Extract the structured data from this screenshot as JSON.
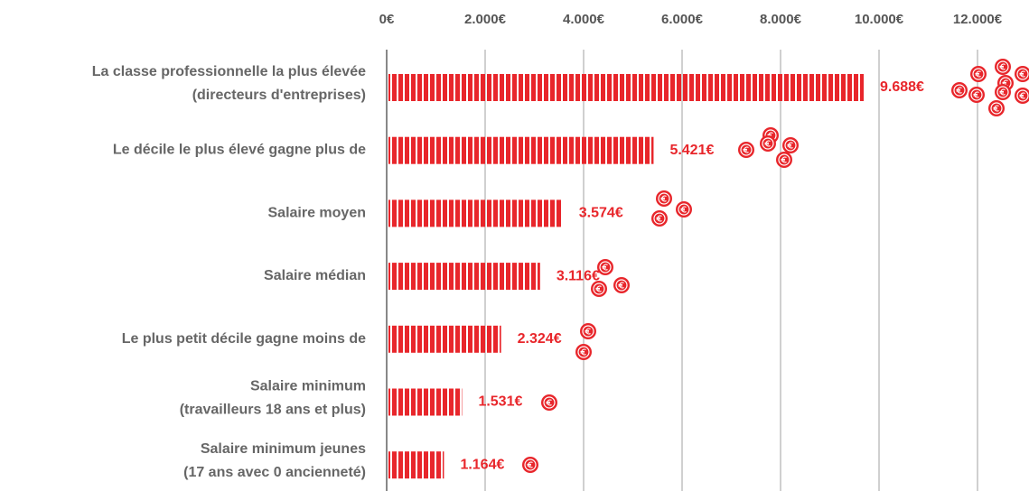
{
  "chart_data": {
    "type": "bar",
    "orientation": "horizontal",
    "categories": [
      [
        "La classe professionnelle la plus élevée",
        "(directeurs d'entreprises)"
      ],
      [
        "Le décile le plus élevé gagne plus de"
      ],
      [
        "Salaire moyen"
      ],
      [
        "Salaire médian"
      ],
      [
        "Le plus petit décile gagne moins de"
      ],
      [
        "Salaire minimum",
        "(travailleurs 18 ans et plus)"
      ],
      [
        "Salaire minimum jeunes",
        "(17 ans avec 0 ancienneté)"
      ]
    ],
    "values": [
      9688,
      5421,
      3574,
      3116,
      2324,
      1531,
      1164
    ],
    "value_labels": [
      "9.688€",
      "5.421€",
      "3.574€",
      "3.116€",
      "2.324€",
      "1.531€",
      "1.164€"
    ],
    "color": "#e8262b",
    "xlim": [
      0,
      12000
    ],
    "xticks": [
      {
        "value": 0,
        "label": "0€"
      },
      {
        "value": 2000,
        "label": "2.000€"
      },
      {
        "value": 4000,
        "label": "4.000€"
      },
      {
        "value": 6000,
        "label": "6.000€"
      },
      {
        "value": 8000,
        "label": "8.000€"
      },
      {
        "value": 10000,
        "label": "10.000€"
      },
      {
        "value": 12000,
        "label": "12.000€"
      }
    ],
    "grid": true
  }
}
